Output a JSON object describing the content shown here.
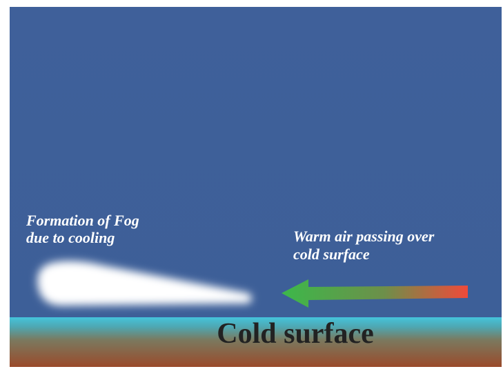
{
  "fog_label": [
    "Formation of Fog",
    "due to cooling"
  ],
  "warm_air_label": [
    "Warm air passing over",
    "cold surface"
  ],
  "surface_label": "Cold surface"
}
